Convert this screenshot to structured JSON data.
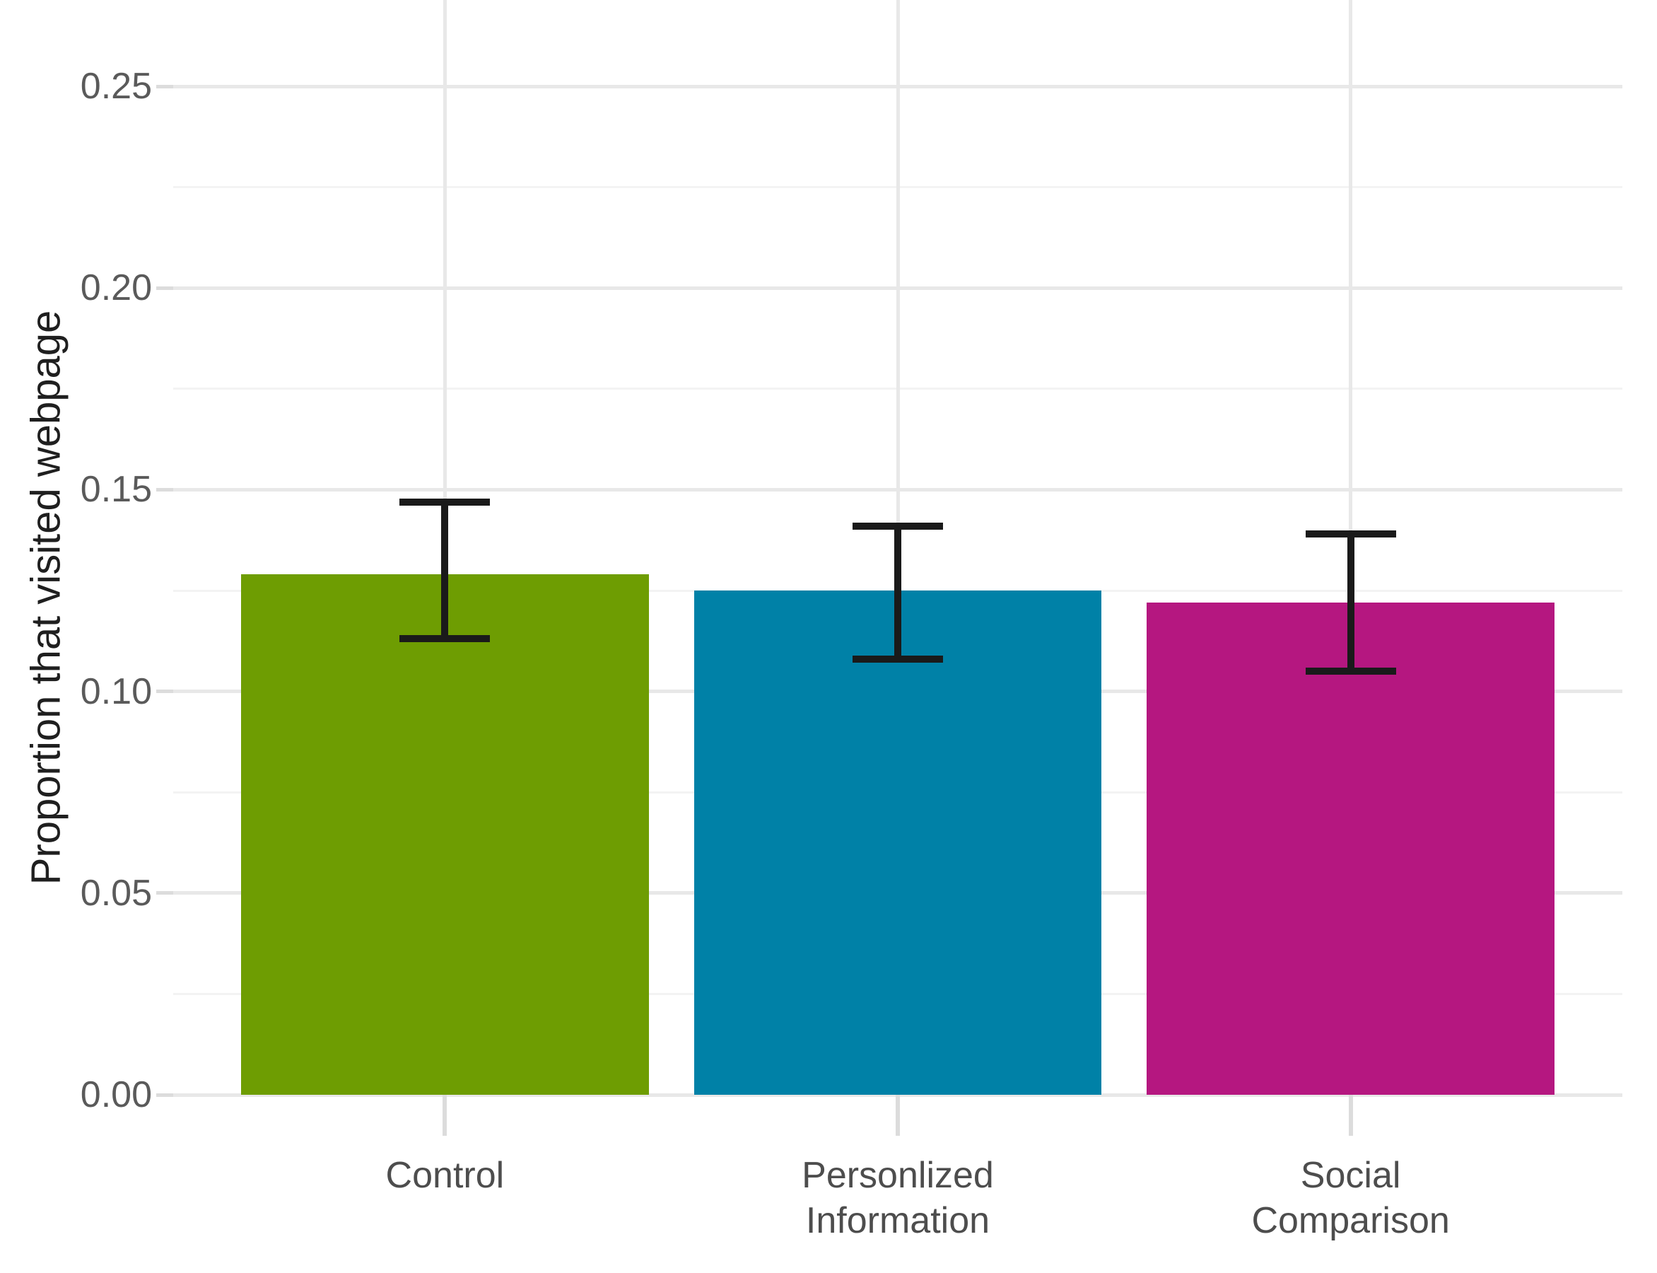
{
  "chart_data": {
    "type": "bar",
    "title": "",
    "xlabel": "",
    "ylabel": "Proportion that visited webpage",
    "categories": [
      "Control",
      "Personlized\nInformation",
      "Social\nComparison"
    ],
    "values": [
      0.129,
      0.125,
      0.122
    ],
    "error_low": [
      0.113,
      0.108,
      0.105
    ],
    "error_high": [
      0.147,
      0.141,
      0.139
    ],
    "bar_colors": [
      "#6E9D02",
      "#0081A7",
      "#B51780"
    ],
    "ylim": [
      0,
      0.25
    ],
    "yticks": [
      0.0,
      0.05,
      0.1,
      0.15,
      0.2,
      0.25
    ],
    "ytick_labels": [
      "0.00",
      "0.05",
      "0.10",
      "0.15",
      "0.20",
      "0.25"
    ],
    "yticks_minor": [
      0.025,
      0.075,
      0.125,
      0.175,
      0.225
    ],
    "grid": true,
    "legend": false,
    "error_bar_color": "#1a1a1a"
  },
  "style": {
    "background": "#ffffff",
    "grid_major_color": "#e8e8e8",
    "grid_minor_color": "#f3f3f3",
    "tick_mark_color": "#dcdcdc",
    "axis_text_color": "#5a5a5a",
    "category_text_color": "#4d4d4d",
    "axis_title_color": "#1f1f1f"
  }
}
